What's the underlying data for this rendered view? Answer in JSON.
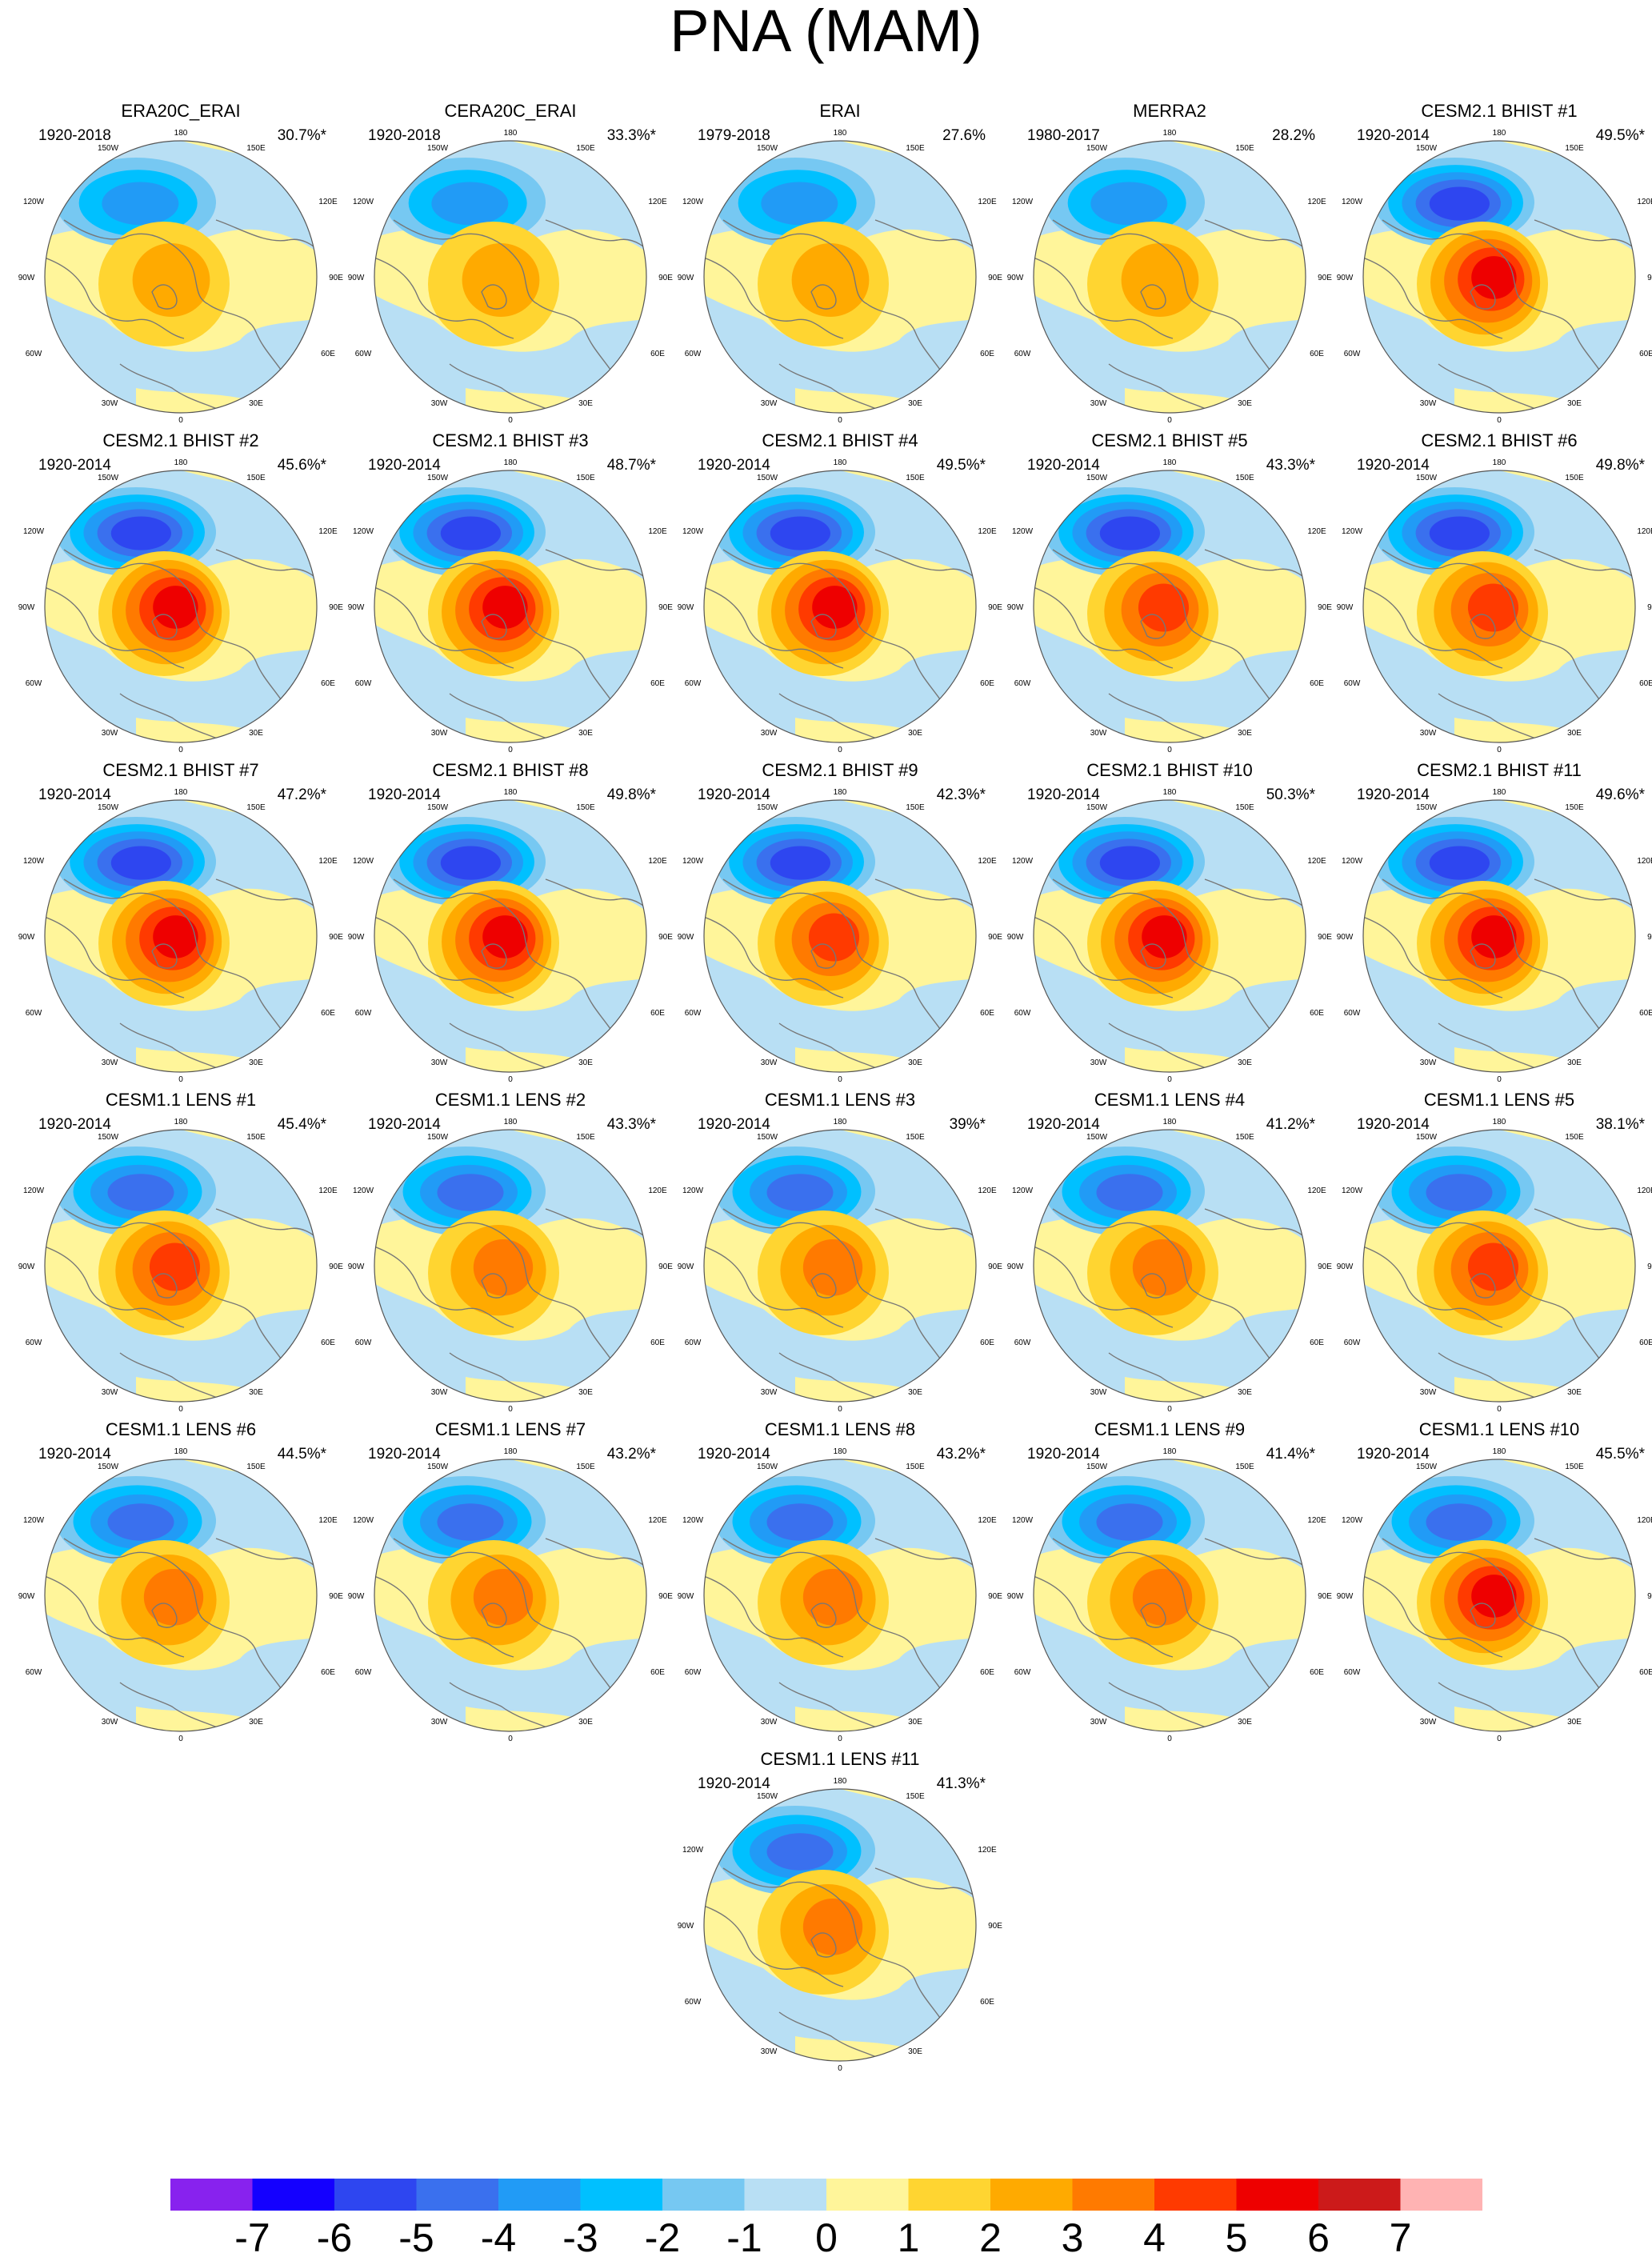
{
  "title": "PNA (MAM)",
  "map_labels": {
    "lon_top": "180",
    "lon_150w": "150W",
    "lon_150e": "150E",
    "lon_120w": "120W",
    "lon_120e": "120E",
    "lon_90w": "90W",
    "lon_90e": "90E",
    "lon_60w": "60W",
    "lon_60e": "60E",
    "lon_30w": "30W",
    "lon_30e": "30E",
    "lon_bottom": "0"
  },
  "colors": {
    "land_outline": "#777777",
    "circle": "#555555"
  },
  "colorbar": {
    "colors": [
      "#8822ee",
      "#1400ff",
      "#2e46f0",
      "#3a70ee",
      "#219bf6",
      "#00c0ff",
      "#76c8f2",
      "#b8dff4",
      "#fff59a",
      "#ffd531",
      "#ffaa00",
      "#ff7a00",
      "#ff3a00",
      "#ee0000",
      "#cc1a1a",
      "#ffb3b3"
    ],
    "labels": [
      "-7",
      "-6",
      "-5",
      "-4",
      "-3",
      "-2",
      "-1",
      "0",
      "1",
      "2",
      "3",
      "4",
      "5",
      "6",
      "7"
    ]
  },
  "panels": [
    {
      "title": "ERA20C_ERAI",
      "years": "1920-2018",
      "pct": "30.7%*",
      "neg": 3,
      "pos": 2
    },
    {
      "title": "CERA20C_ERAI",
      "years": "1920-2018",
      "pct": "33.3%*",
      "neg": 3,
      "pos": 2
    },
    {
      "title": "ERAI",
      "years": "1979-2018",
      "pct": "27.6%",
      "neg": 3,
      "pos": 2
    },
    {
      "title": "MERRA2",
      "years": "1980-2017",
      "pct": "28.2%",
      "neg": 3,
      "pos": 2
    },
    {
      "title": "CESM2.1 BHIST #1",
      "years": "1920-2014",
      "pct": "49.5%*",
      "neg": 5,
      "pos": 5
    },
    {
      "title": "CESM2.1 BHIST #2",
      "years": "1920-2014",
      "pct": "45.6%*",
      "neg": 5,
      "pos": 5
    },
    {
      "title": "CESM2.1 BHIST #3",
      "years": "1920-2014",
      "pct": "48.7%*",
      "neg": 5,
      "pos": 5
    },
    {
      "title": "CESM2.1 BHIST #4",
      "years": "1920-2014",
      "pct": "49.5%*",
      "neg": 5,
      "pos": 5
    },
    {
      "title": "CESM2.1 BHIST #5",
      "years": "1920-2014",
      "pct": "43.3%*",
      "neg": 5,
      "pos": 4
    },
    {
      "title": "CESM2.1 BHIST #6",
      "years": "1920-2014",
      "pct": "49.8%*",
      "neg": 5,
      "pos": 4
    },
    {
      "title": "CESM2.1 BHIST #7",
      "years": "1920-2014",
      "pct": "47.2%*",
      "neg": 5,
      "pos": 5
    },
    {
      "title": "CESM2.1 BHIST #8",
      "years": "1920-2014",
      "pct": "49.8%*",
      "neg": 5,
      "pos": 5
    },
    {
      "title": "CESM2.1 BHIST #9",
      "years": "1920-2014",
      "pct": "42.3%*",
      "neg": 5,
      "pos": 4
    },
    {
      "title": "CESM2.1 BHIST #10",
      "years": "1920-2014",
      "pct": "50.3%*",
      "neg": 5,
      "pos": 5
    },
    {
      "title": "CESM2.1 BHIST #11",
      "years": "1920-2014",
      "pct": "49.6%*",
      "neg": 5,
      "pos": 5
    },
    {
      "title": "CESM1.1 LENS #1",
      "years": "1920-2014",
      "pct": "45.4%*",
      "neg": 4,
      "pos": 4
    },
    {
      "title": "CESM1.1 LENS #2",
      "years": "1920-2014",
      "pct": "43.3%*",
      "neg": 4,
      "pos": 3
    },
    {
      "title": "CESM1.1 LENS #3",
      "years": "1920-2014",
      "pct": "39%*",
      "neg": 4,
      "pos": 3
    },
    {
      "title": "CESM1.1 LENS #4",
      "years": "1920-2014",
      "pct": "41.2%*",
      "neg": 4,
      "pos": 3
    },
    {
      "title": "CESM1.1 LENS #5",
      "years": "1920-2014",
      "pct": "38.1%*",
      "neg": 4,
      "pos": 4
    },
    {
      "title": "CESM1.1 LENS #6",
      "years": "1920-2014",
      "pct": "44.5%*",
      "neg": 4,
      "pos": 3
    },
    {
      "title": "CESM1.1 LENS #7",
      "years": "1920-2014",
      "pct": "43.2%*",
      "neg": 4,
      "pos": 3
    },
    {
      "title": "CESM1.1 LENS #8",
      "years": "1920-2014",
      "pct": "43.2%*",
      "neg": 4,
      "pos": 3
    },
    {
      "title": "CESM1.1 LENS #9",
      "years": "1920-2014",
      "pct": "41.4%*",
      "neg": 4,
      "pos": 3
    },
    {
      "title": "CESM1.1 LENS #10",
      "years": "1920-2014",
      "pct": "45.5%*",
      "neg": 4,
      "pos": 5
    },
    {
      "title": "CESM1.1 LENS #11",
      "years": "1920-2014",
      "pct": "41.3%*",
      "neg": 4,
      "pos": 3
    }
  ]
}
